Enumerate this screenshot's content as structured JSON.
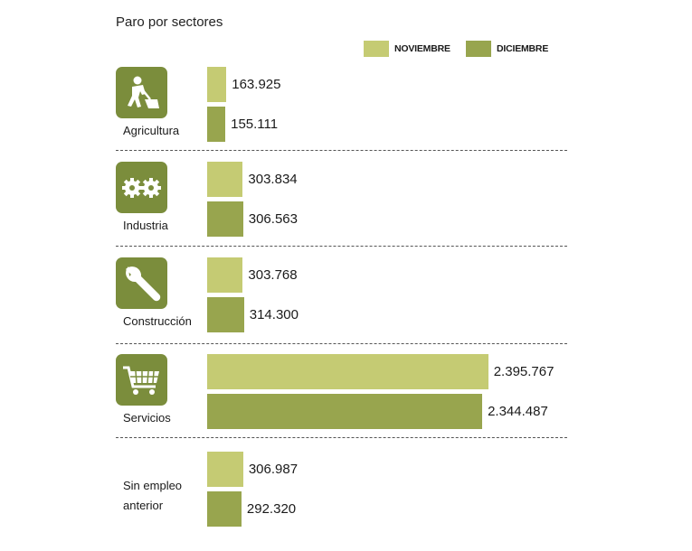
{
  "chart_data": {
    "type": "bar",
    "orientation": "horizontal",
    "title": "Paro por sectores",
    "categories": [
      "Agricultura",
      "Industria",
      "Construcción",
      "Servicios",
      "Sin empleo anterior"
    ],
    "category_lines": [
      [
        "Agricultura"
      ],
      [
        "Industria"
      ],
      [
        "Construcción"
      ],
      [
        "Servicios"
      ],
      [
        "Sin empleo",
        "anterior"
      ]
    ],
    "icons": [
      "worker-shovel-icon",
      "gears-icon",
      "wrench-icon",
      "shopping-cart-icon",
      null
    ],
    "series": [
      {
        "name": "NOVIEMBRE",
        "color": "#c5cb73",
        "values": [
          163925,
          303834,
          303768,
          2395767,
          306987
        ],
        "labels": [
          "163.925",
          "303.834",
          "303.768",
          "2.395.767",
          "306.987"
        ]
      },
      {
        "name": "DICIEMBRE",
        "color": "#98a54e",
        "values": [
          155111,
          306563,
          314300,
          2344487,
          292320
        ],
        "labels": [
          "155.111",
          "306.563",
          "314.300",
          "2.344.487",
          "292.320"
        ]
      }
    ],
    "legend_position": "top-right",
    "icon_color": "#7b8d3c",
    "grid": false
  }
}
